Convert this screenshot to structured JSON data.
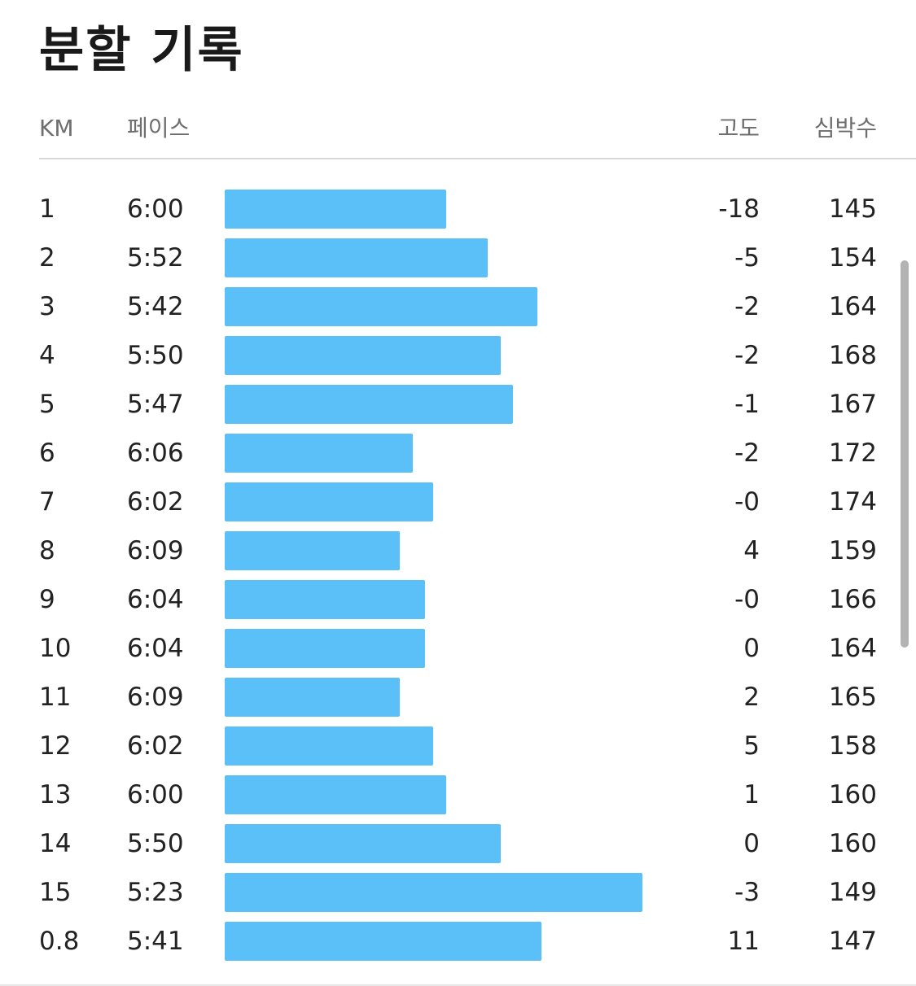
{
  "title": "분할 기록",
  "headers": {
    "km": "KM",
    "pace": "페이스",
    "elevation": "고도",
    "heart_rate": "심박수"
  },
  "colors": {
    "bar": "#5bc0f8",
    "text": "#222222",
    "header_text": "#6e6e6e",
    "divider": "#d8d8d8"
  },
  "rows": [
    {
      "km": "1",
      "pace": "6:00",
      "elevation": "-18",
      "heart_rate": "145",
      "pace_bar_fraction": 0.486
    },
    {
      "km": "2",
      "pace": "5:52",
      "elevation": "-5",
      "heart_rate": "154",
      "pace_bar_fraction": 0.577
    },
    {
      "km": "3",
      "pace": "5:42",
      "elevation": "-2",
      "heart_rate": "164",
      "pace_bar_fraction": 0.686
    },
    {
      "km": "4",
      "pace": "5:50",
      "elevation": "-2",
      "heart_rate": "168",
      "pace_bar_fraction": 0.605
    },
    {
      "km": "5",
      "pace": "5:47",
      "elevation": "-1",
      "heart_rate": "167",
      "pace_bar_fraction": 0.632
    },
    {
      "km": "6",
      "pace": "6:06",
      "elevation": "-2",
      "heart_rate": "172",
      "pace_bar_fraction": 0.413
    },
    {
      "km": "7",
      "pace": "6:02",
      "elevation": "-0",
      "heart_rate": "174",
      "pace_bar_fraction": 0.457
    },
    {
      "km": "8",
      "pace": "6:09",
      "elevation": "4",
      "heart_rate": "159",
      "pace_bar_fraction": 0.384
    },
    {
      "km": "9",
      "pace": "6:04",
      "elevation": "-0",
      "heart_rate": "166",
      "pace_bar_fraction": 0.439
    },
    {
      "km": "10",
      "pace": "6:04",
      "elevation": "0",
      "heart_rate": "164",
      "pace_bar_fraction": 0.439
    },
    {
      "km": "11",
      "pace": "6:09",
      "elevation": "2",
      "heart_rate": "165",
      "pace_bar_fraction": 0.384
    },
    {
      "km": "12",
      "pace": "6:02",
      "elevation": "5",
      "heart_rate": "158",
      "pace_bar_fraction": 0.457
    },
    {
      "km": "13",
      "pace": "6:00",
      "elevation": "1",
      "heart_rate": "160",
      "pace_bar_fraction": 0.486
    },
    {
      "km": "14",
      "pace": "5:50",
      "elevation": "0",
      "heart_rate": "160",
      "pace_bar_fraction": 0.605
    },
    {
      "km": "15",
      "pace": "5:23",
      "elevation": "-3",
      "heart_rate": "149",
      "pace_bar_fraction": 0.916
    },
    {
      "km": "0.8",
      "pace": "5:41",
      "elevation": "11",
      "heart_rate": "147",
      "pace_bar_fraction": 0.695
    }
  ]
}
